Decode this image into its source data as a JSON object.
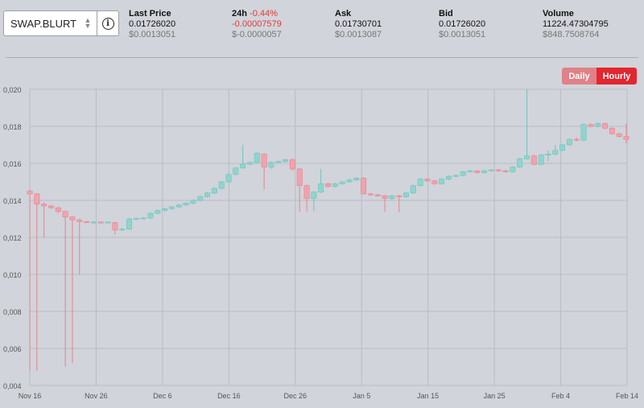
{
  "market": {
    "symbol": "SWAP.BLURT"
  },
  "stats": {
    "last_price": {
      "label": "Last Price",
      "value": "0.01726020",
      "usd": "$0.0013051"
    },
    "change_24h": {
      "label": "24h",
      "pct": "-0.44%",
      "value": "-0.00007579",
      "usd": "$-0.0000057"
    },
    "ask": {
      "label": "Ask",
      "value": "0.01730701",
      "usd": "$0.0013087"
    },
    "bid": {
      "label": "Bid",
      "value": "0.01726020",
      "usd": "$0.0013051"
    },
    "volume": {
      "label": "Volume",
      "value": "11224.47304795",
      "usd": "$848.7508764"
    }
  },
  "toggle": {
    "daily": "Daily",
    "hourly": "Hourly",
    "selected": "Hourly"
  },
  "colors": {
    "up": "#8fd5cf",
    "up_stroke": "#6cc4bc",
    "down": "#f0a3ae",
    "down_stroke": "#e8828f",
    "grid": "#b9bcc2",
    "background": "#d1d4da"
  },
  "icons": {
    "selector_chevron": "chevron-up-down-icon",
    "info": "info-icon"
  },
  "chart_data": {
    "type": "candlestick",
    "ylim": [
      0.004,
      0.02
    ],
    "y_ticks": [
      "0,004",
      "0,006",
      "0,008",
      "0,010",
      "0,012",
      "0,014",
      "0,016",
      "0,018",
      "0,020"
    ],
    "x_ticks": [
      "Nov 16",
      "Nov 26",
      "Dec 6",
      "Dec 16",
      "Dec 26",
      "Jan 5",
      "Jan 15",
      "Jan 25",
      "Feb 4",
      "Feb 14"
    ],
    "grid": true,
    "candles": [
      {
        "o": 0.0145,
        "c": 0.01435,
        "h": 0.0146,
        "l": 0.0048
      },
      {
        "o": 0.01435,
        "c": 0.0138,
        "h": 0.0144,
        "l": 0.0048
      },
      {
        "o": 0.0138,
        "c": 0.0137,
        "h": 0.0139,
        "l": 0.012
      },
      {
        "o": 0.0137,
        "c": 0.0136,
        "h": 0.01375,
        "l": 0.01355
      },
      {
        "o": 0.0136,
        "c": 0.0134,
        "h": 0.01365,
        "l": 0.0133
      },
      {
        "o": 0.0134,
        "c": 0.0131,
        "h": 0.01345,
        "l": 0.005
      },
      {
        "o": 0.0131,
        "c": 0.01295,
        "h": 0.01315,
        "l": 0.0052
      },
      {
        "o": 0.01295,
        "c": 0.01285,
        "h": 0.013,
        "l": 0.01
      },
      {
        "o": 0.01285,
        "c": 0.01282,
        "h": 0.0129,
        "l": 0.01278
      },
      {
        "o": 0.01282,
        "c": 0.01283,
        "h": 0.01288,
        "l": 0.01278
      },
      {
        "o": 0.01283,
        "c": 0.01282,
        "h": 0.01287,
        "l": 0.01278
      },
      {
        "o": 0.01282,
        "c": 0.01283,
        "h": 0.01286,
        "l": 0.01279
      },
      {
        "o": 0.0128,
        "c": 0.0124,
        "h": 0.01285,
        "l": 0.01215
      },
      {
        "o": 0.0124,
        "c": 0.01245,
        "h": 0.0125,
        "l": 0.01235
      },
      {
        "o": 0.01245,
        "c": 0.013,
        "h": 0.01305,
        "l": 0.0124
      },
      {
        "o": 0.013,
        "c": 0.01302,
        "h": 0.01306,
        "l": 0.01296
      },
      {
        "o": 0.013,
        "c": 0.01305,
        "h": 0.0131,
        "l": 0.01298
      },
      {
        "o": 0.01305,
        "c": 0.0133,
        "h": 0.01335,
        "l": 0.013
      },
      {
        "o": 0.0133,
        "c": 0.01345,
        "h": 0.0135,
        "l": 0.01325
      },
      {
        "o": 0.01345,
        "c": 0.01355,
        "h": 0.0136,
        "l": 0.0134
      },
      {
        "o": 0.01355,
        "c": 0.01365,
        "h": 0.0137,
        "l": 0.0135
      },
      {
        "o": 0.01365,
        "c": 0.01375,
        "h": 0.0138,
        "l": 0.0136
      },
      {
        "o": 0.01375,
        "c": 0.01385,
        "h": 0.0139,
        "l": 0.0137
      },
      {
        "o": 0.01385,
        "c": 0.014,
        "h": 0.01405,
        "l": 0.0138
      },
      {
        "o": 0.014,
        "c": 0.0142,
        "h": 0.01425,
        "l": 0.01395
      },
      {
        "o": 0.0142,
        "c": 0.0144,
        "h": 0.01445,
        "l": 0.01415
      },
      {
        "o": 0.0144,
        "c": 0.01465,
        "h": 0.0147,
        "l": 0.01435
      },
      {
        "o": 0.01465,
        "c": 0.015,
        "h": 0.01505,
        "l": 0.0146
      },
      {
        "o": 0.015,
        "c": 0.0154,
        "h": 0.01545,
        "l": 0.01495
      },
      {
        "o": 0.0154,
        "c": 0.01575,
        "h": 0.0158,
        "l": 0.01535
      },
      {
        "o": 0.01575,
        "c": 0.01595,
        "h": 0.017,
        "l": 0.0157
      },
      {
        "o": 0.01595,
        "c": 0.01605,
        "h": 0.0161,
        "l": 0.0159
      },
      {
        "o": 0.01605,
        "c": 0.01655,
        "h": 0.0166,
        "l": 0.016
      },
      {
        "o": 0.0165,
        "c": 0.0158,
        "h": 0.01655,
        "l": 0.0146
      },
      {
        "o": 0.0158,
        "c": 0.01605,
        "h": 0.0161,
        "l": 0.0157
      },
      {
        "o": 0.01605,
        "c": 0.0161,
        "h": 0.01615,
        "l": 0.016
      },
      {
        "o": 0.0161,
        "c": 0.0162,
        "h": 0.01625,
        "l": 0.01605
      },
      {
        "o": 0.0162,
        "c": 0.0157,
        "h": 0.01625,
        "l": 0.0156
      },
      {
        "o": 0.0157,
        "c": 0.0148,
        "h": 0.01575,
        "l": 0.0134
      },
      {
        "o": 0.0148,
        "c": 0.0141,
        "h": 0.01485,
        "l": 0.0134
      },
      {
        "o": 0.0141,
        "c": 0.01445,
        "h": 0.0145,
        "l": 0.0134
      },
      {
        "o": 0.01445,
        "c": 0.0149,
        "h": 0.0157,
        "l": 0.0144
      },
      {
        "o": 0.0149,
        "c": 0.01475,
        "h": 0.01495,
        "l": 0.0147
      },
      {
        "o": 0.01475,
        "c": 0.0149,
        "h": 0.01495,
        "l": 0.0147
      },
      {
        "o": 0.0149,
        "c": 0.015,
        "h": 0.01505,
        "l": 0.01485
      },
      {
        "o": 0.015,
        "c": 0.0151,
        "h": 0.01515,
        "l": 0.01495
      },
      {
        "o": 0.0151,
        "c": 0.0152,
        "h": 0.01525,
        "l": 0.01505
      },
      {
        "o": 0.0152,
        "c": 0.01435,
        "h": 0.01525,
        "l": 0.0143
      },
      {
        "o": 0.01435,
        "c": 0.0143,
        "h": 0.0144,
        "l": 0.01425
      },
      {
        "o": 0.0143,
        "c": 0.01425,
        "h": 0.01435,
        "l": 0.0142
      },
      {
        "o": 0.01425,
        "c": 0.0141,
        "h": 0.0143,
        "l": 0.0134
      },
      {
        "o": 0.0141,
        "c": 0.01425,
        "h": 0.0143,
        "l": 0.014
      },
      {
        "o": 0.01425,
        "c": 0.0142,
        "h": 0.0143,
        "l": 0.01335
      },
      {
        "o": 0.0142,
        "c": 0.0144,
        "h": 0.01445,
        "l": 0.01415
      },
      {
        "o": 0.0144,
        "c": 0.0148,
        "h": 0.01485,
        "l": 0.01435
      },
      {
        "o": 0.0148,
        "c": 0.01515,
        "h": 0.0152,
        "l": 0.01475
      },
      {
        "o": 0.01515,
        "c": 0.01505,
        "h": 0.0152,
        "l": 0.015
      },
      {
        "o": 0.01505,
        "c": 0.0149,
        "h": 0.0151,
        "l": 0.01485
      },
      {
        "o": 0.0149,
        "c": 0.01515,
        "h": 0.0152,
        "l": 0.01485
      },
      {
        "o": 0.01515,
        "c": 0.0153,
        "h": 0.01535,
        "l": 0.0151
      },
      {
        "o": 0.0153,
        "c": 0.01535,
        "h": 0.0154,
        "l": 0.01525
      },
      {
        "o": 0.01535,
        "c": 0.01555,
        "h": 0.0156,
        "l": 0.0153
      },
      {
        "o": 0.01555,
        "c": 0.0156,
        "h": 0.01565,
        "l": 0.0155
      },
      {
        "o": 0.0156,
        "c": 0.0155,
        "h": 0.01565,
        "l": 0.01545
      },
      {
        "o": 0.0155,
        "c": 0.0156,
        "h": 0.01565,
        "l": 0.01545
      },
      {
        "o": 0.0156,
        "c": 0.01565,
        "h": 0.0157,
        "l": 0.01555
      },
      {
        "o": 0.01565,
        "c": 0.0156,
        "h": 0.0157,
        "l": 0.01555
      },
      {
        "o": 0.0156,
        "c": 0.01555,
        "h": 0.01565,
        "l": 0.0155
      },
      {
        "o": 0.01555,
        "c": 0.0158,
        "h": 0.01585,
        "l": 0.0155
      },
      {
        "o": 0.0158,
        "c": 0.01625,
        "h": 0.0163,
        "l": 0.01575
      },
      {
        "o": 0.01625,
        "c": 0.0164,
        "h": 0.02,
        "l": 0.0162
      },
      {
        "o": 0.0164,
        "c": 0.01595,
        "h": 0.01645,
        "l": 0.0159
      },
      {
        "o": 0.01595,
        "c": 0.01645,
        "h": 0.0165,
        "l": 0.0159
      },
      {
        "o": 0.01645,
        "c": 0.0165,
        "h": 0.0167,
        "l": 0.0161
      },
      {
        "o": 0.0165,
        "c": 0.0167,
        "h": 0.017,
        "l": 0.01645
      },
      {
        "o": 0.0167,
        "c": 0.017,
        "h": 0.01705,
        "l": 0.01665
      },
      {
        "o": 0.017,
        "c": 0.0173,
        "h": 0.01735,
        "l": 0.01695
      },
      {
        "o": 0.0173,
        "c": 0.01725,
        "h": 0.0174,
        "l": 0.0172
      },
      {
        "o": 0.01725,
        "c": 0.0181,
        "h": 0.01815,
        "l": 0.0172
      },
      {
        "o": 0.0181,
        "c": 0.018,
        "h": 0.01815,
        "l": 0.01795
      },
      {
        "o": 0.018,
        "c": 0.01815,
        "h": 0.0182,
        "l": 0.01795
      },
      {
        "o": 0.01815,
        "c": 0.0179,
        "h": 0.0182,
        "l": 0.01785
      },
      {
        "o": 0.0179,
        "c": 0.0176,
        "h": 0.01795,
        "l": 0.01755
      },
      {
        "o": 0.0176,
        "c": 0.01745,
        "h": 0.01765,
        "l": 0.0174
      },
      {
        "o": 0.01745,
        "c": 0.0173,
        "h": 0.01815,
        "l": 0.0171
      }
    ]
  }
}
